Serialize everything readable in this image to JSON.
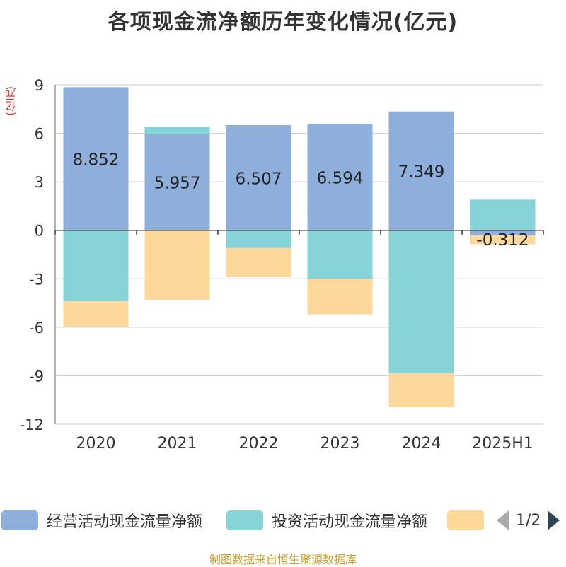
{
  "title": "各项现金流净额历年变化情况(亿元)",
  "unit_label": "(亿元)",
  "source": "制图数据来自恒生聚源数据库",
  "legend": {
    "items": [
      {
        "name": "经营活动现金流量净额",
        "color": "#8eaedb"
      },
      {
        "name": "投资活动现金流量净额",
        "color": "#86d4d8"
      },
      {
        "name": "",
        "color": "#fdd89a"
      }
    ],
    "page": "1/2"
  },
  "chart_data": {
    "type": "bar",
    "stacked": true,
    "title": "各项现金流净额历年变化情况(亿元)",
    "ylabel": "(亿元)",
    "categories": [
      "2020",
      "2021",
      "2022",
      "2023",
      "2024",
      "2025H1"
    ],
    "ylim": [
      -12,
      9
    ],
    "yticks": [
      9,
      6,
      3,
      0,
      -3,
      -6,
      -9,
      -12
    ],
    "grid": true,
    "legend_position": "bottom",
    "series": [
      {
        "name": "经营活动现金流量净额",
        "color": "#8eaedb",
        "values": [
          8.852,
          5.957,
          6.507,
          6.594,
          7.349,
          -0.312
        ],
        "labels": [
          "8.852",
          "5.957",
          "6.507",
          "6.594",
          "7.349",
          "-0.312"
        ]
      },
      {
        "name": "投资活动现金流量净额",
        "color": "#86d4d8",
        "values": [
          -4.4,
          0.45,
          -1.1,
          -3.0,
          -8.85,
          1.9
        ]
      },
      {
        "name": "",
        "color": "#fdd89a",
        "values": [
          -1.6,
          -4.3,
          -1.8,
          -2.2,
          -2.1,
          -0.55
        ]
      }
    ]
  }
}
